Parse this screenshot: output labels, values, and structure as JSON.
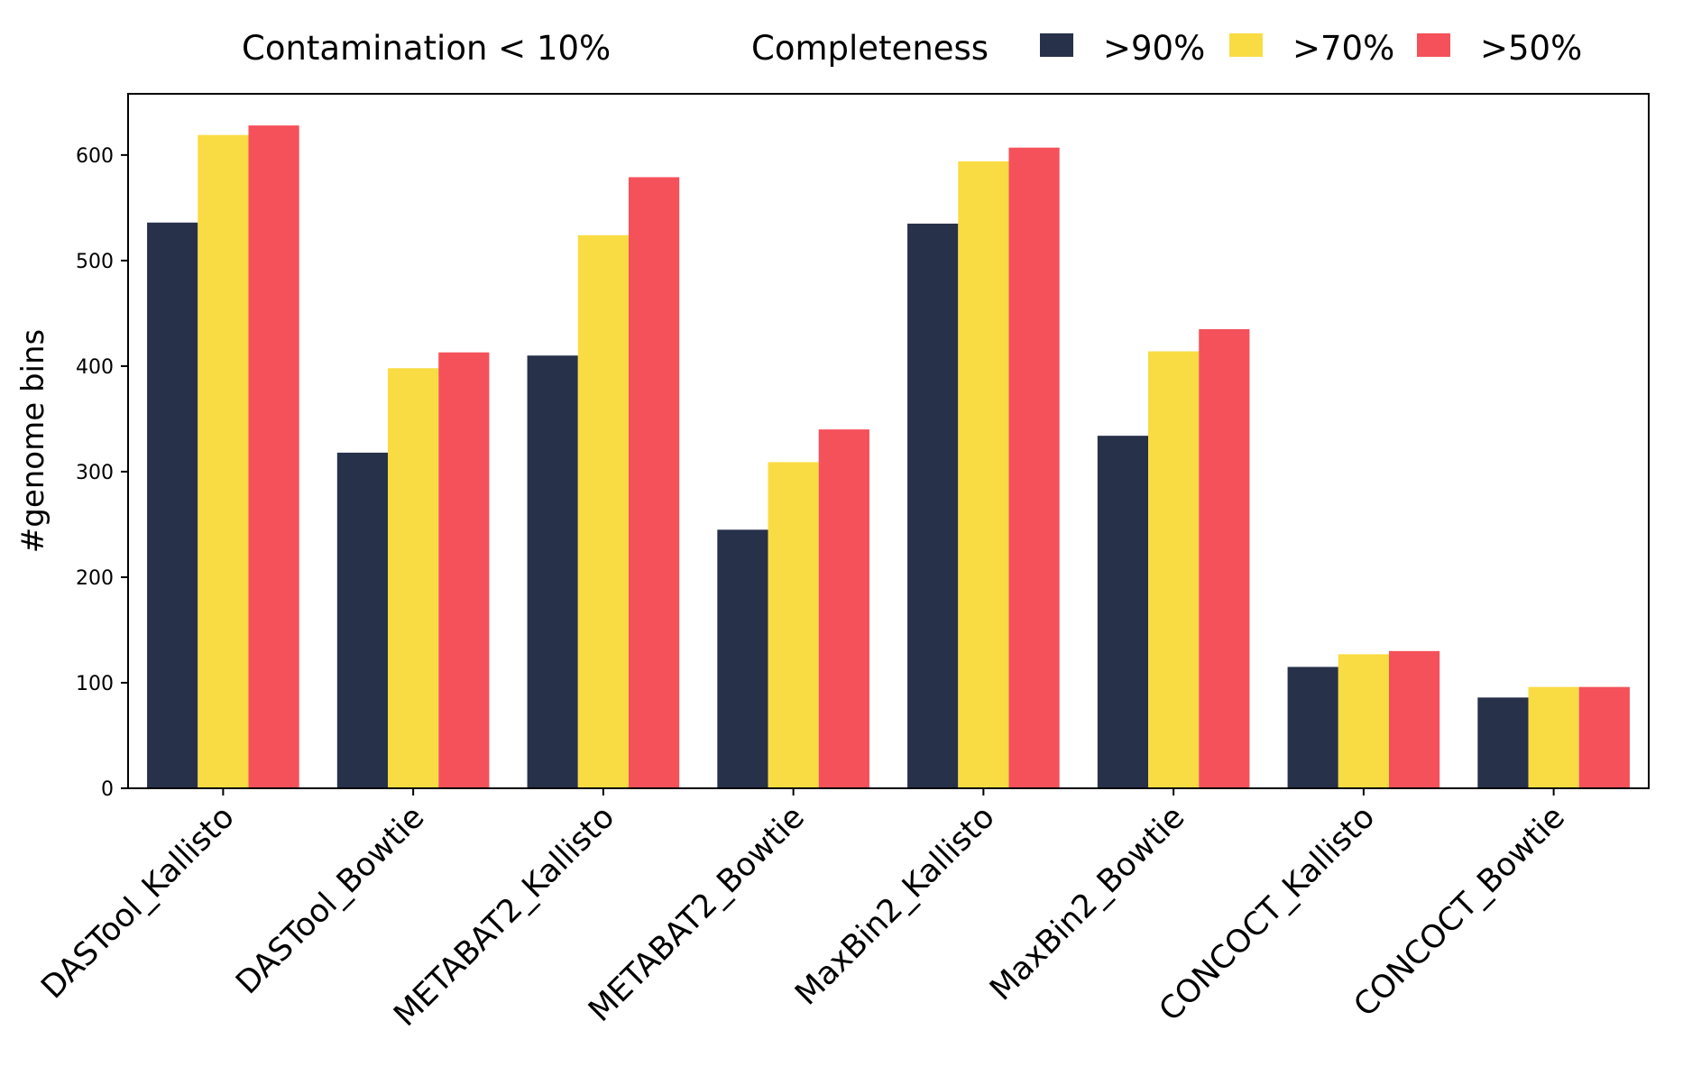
{
  "chart_data": {
    "type": "bar",
    "title": "",
    "xlabel": "",
    "ylabel": "#genome bins",
    "legend": {
      "prefix": "Contamination < 10%",
      "title": "Completeness",
      "placement": "top"
    },
    "categories": [
      "DASTool_Kallisto",
      "DASTool_Bowtie",
      "METABAT2_Kallisto",
      "METABAT2_Bowtie",
      "MaxBin2_Kallisto",
      "MaxBin2_Bowtie",
      "CONCOCT_Kallisto",
      "CONCOCT_Bowtie"
    ],
    "series": [
      {
        "name": ">90%",
        "color": "#27314a",
        "values": [
          536,
          318,
          410,
          245,
          535,
          334,
          115,
          86
        ]
      },
      {
        "name": ">70%",
        "color": "#f9dc43",
        "values": [
          619,
          398,
          524,
          309,
          594,
          414,
          127,
          96
        ]
      },
      {
        "name": ">50%",
        "color": "#f5515a",
        "values": [
          628,
          413,
          579,
          340,
          607,
          435,
          130,
          96
        ]
      }
    ],
    "ylim": [
      0,
      658
    ],
    "yticks": [
      0,
      100,
      200,
      300,
      400,
      500,
      600
    ],
    "grid": false
  }
}
